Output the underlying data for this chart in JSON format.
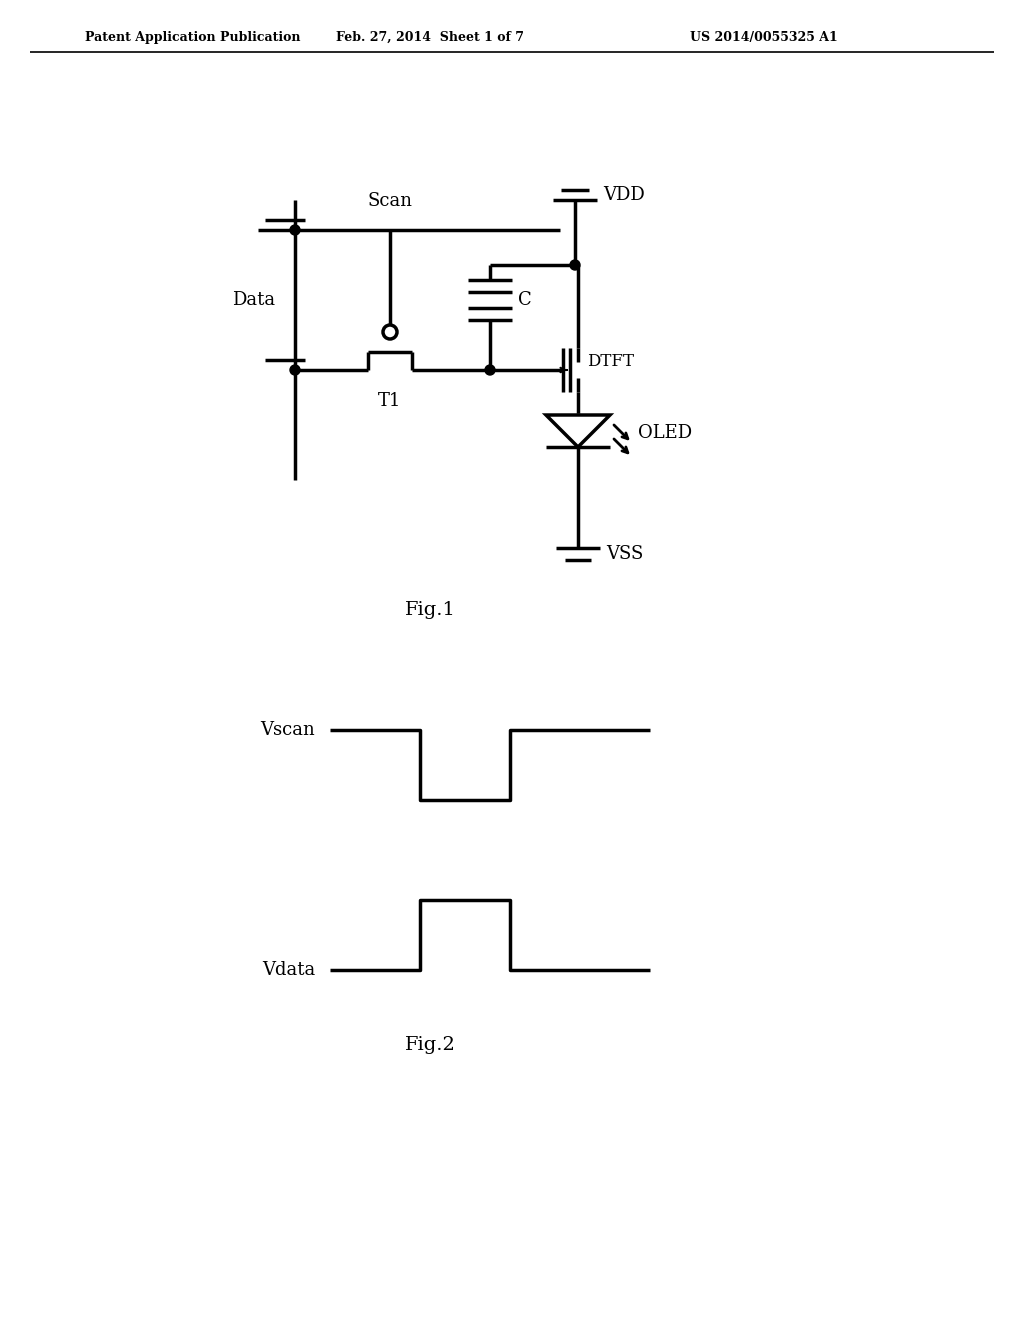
{
  "bg_color": "#ffffff",
  "line_color": "#000000",
  "line_width": 2.5,
  "header_left": "Patent Application Publication",
  "header_center": "Feb. 27, 2014  Sheet 1 of 7",
  "header_right": "US 2014/0055325 A1",
  "fig1_label": "Fig.1",
  "fig2_label": "Fig.2",
  "vscan_label": "Vscan",
  "vdata_label": "Vdata",
  "scan_label": "Scan",
  "data_label": "Data",
  "vdd_label": "VDD",
  "vss_label": "VSS",
  "c_label": "C",
  "t1_label": "T1",
  "dtft_label": "DTFT",
  "oled_label": "OLED"
}
